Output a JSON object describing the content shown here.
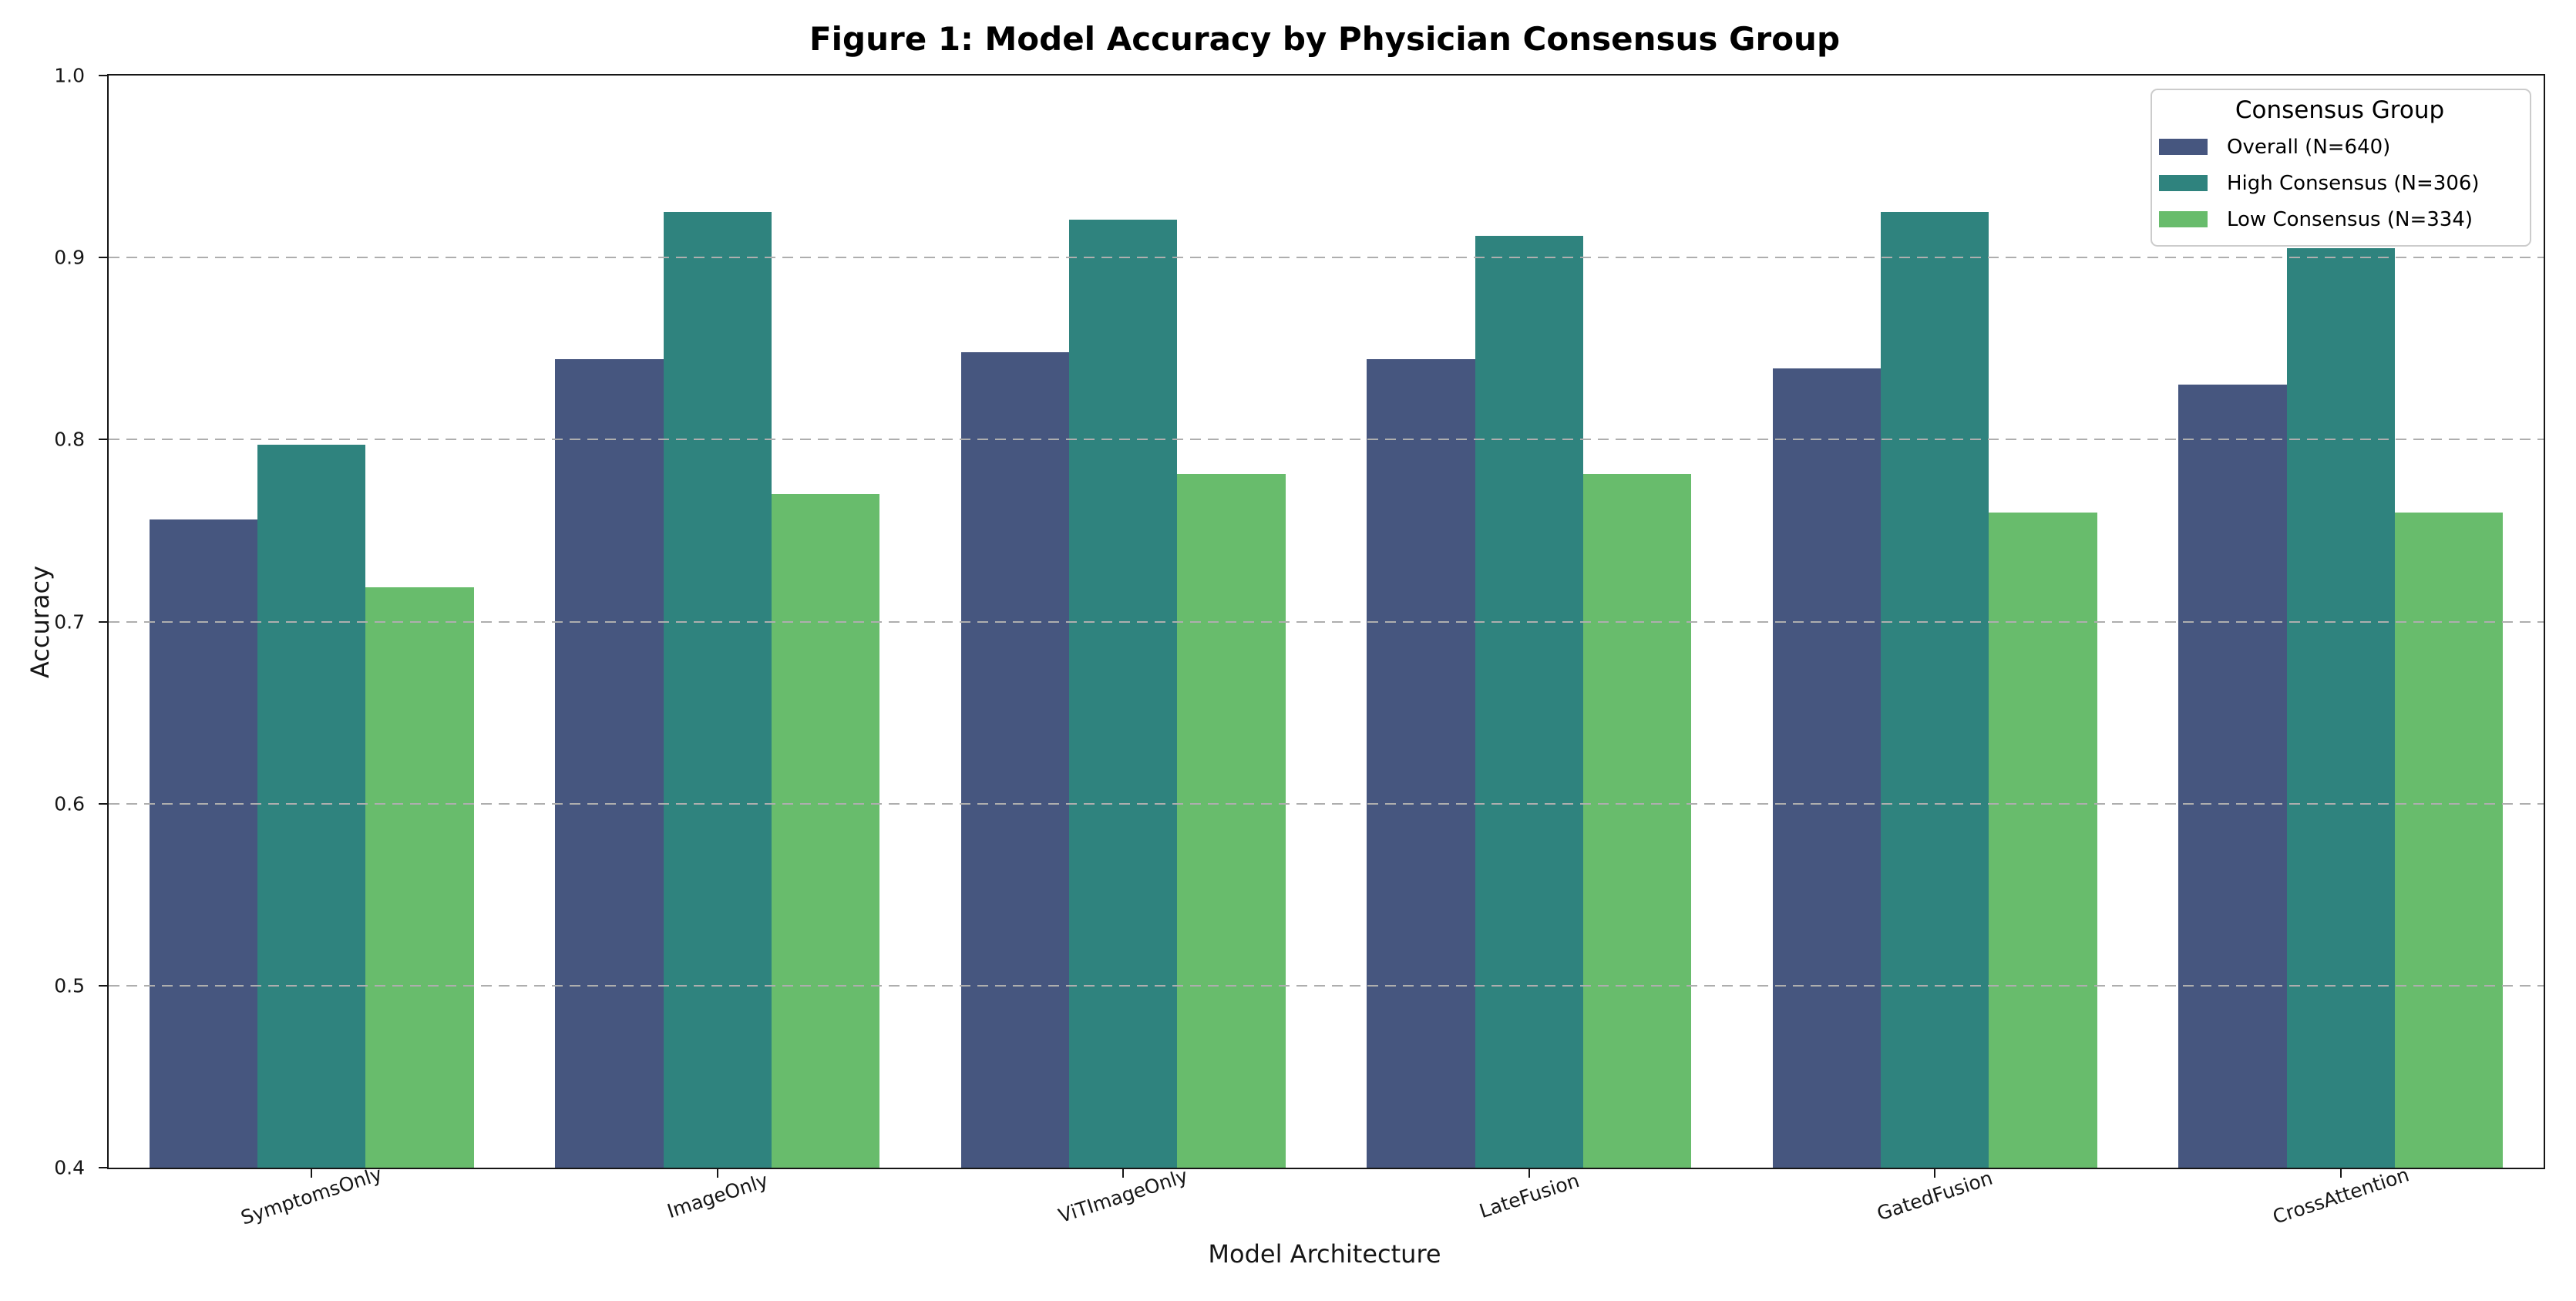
{
  "chart_data": {
    "type": "bar",
    "title": "Figure 1: Model Accuracy by Physician Consensus Group",
    "xlabel": "Model Architecture",
    "ylabel": "Accuracy",
    "ylim": [
      0.4,
      1.0
    ],
    "yticks": [
      0.4,
      0.5,
      0.6,
      0.7,
      0.8,
      0.9,
      1.0
    ],
    "grid": "horizontal-dashed",
    "bar_group_width_fraction": 0.8,
    "legend": {
      "title": "Consensus Group",
      "position": "upper right"
    },
    "categories": [
      "SymptomsOnly",
      "ImageOnly",
      "ViTImageOnly",
      "LateFusion",
      "GatedFusion",
      "CrossAttention"
    ],
    "series": [
      {
        "name": "Overall (N=640)",
        "color": "#46567F",
        "values": [
          0.756,
          0.844,
          0.848,
          0.844,
          0.839,
          0.83
        ]
      },
      {
        "name": "High Consensus (N=306)",
        "color": "#2F837E",
        "values": [
          0.797,
          0.925,
          0.921,
          0.912,
          0.925,
          0.905
        ]
      },
      {
        "name": "Low Consensus (N=334)",
        "color": "#68BC6C",
        "values": [
          0.719,
          0.77,
          0.781,
          0.781,
          0.76,
          0.76
        ]
      }
    ]
  }
}
